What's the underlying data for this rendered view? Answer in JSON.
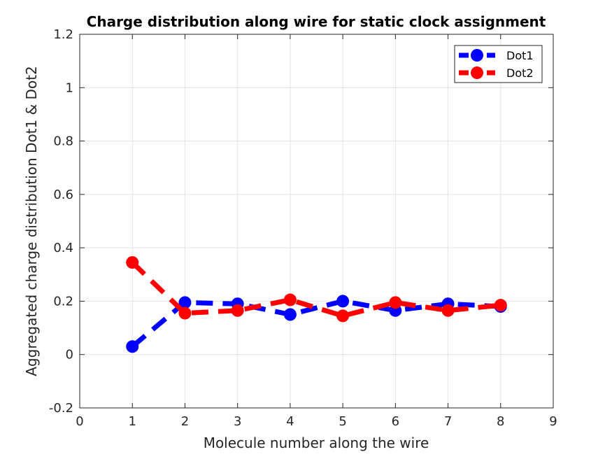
{
  "chart_data": {
    "type": "line",
    "title": "Charge distribution along wire for static clock assignment",
    "xlabel": "Molecule number along the wire",
    "ylabel": "Aggregated charge distribution Dot1 & Dot2",
    "xlim": [
      0,
      9
    ],
    "ylim": [
      -0.2,
      1.2
    ],
    "xticks": [
      0,
      1,
      2,
      3,
      4,
      5,
      6,
      7,
      8,
      9
    ],
    "xtick_labels": [
      "0",
      "1",
      "2",
      "3",
      "4",
      "5",
      "6",
      "7",
      "8",
      "9"
    ],
    "yticks": [
      -0.2,
      0,
      0.2,
      0.4,
      0.6,
      0.8,
      1,
      1.2
    ],
    "ytick_labels": [
      "-0.2",
      "0",
      "0.2",
      "0.4",
      "0.6",
      "0.8",
      "1",
      "1.2"
    ],
    "grid": true,
    "legend_position": "top-right",
    "x": [
      1,
      2,
      3,
      4,
      5,
      6,
      7,
      8
    ],
    "series": [
      {
        "name": "Dot1",
        "color": "#0000ff",
        "line_style": "dashed",
        "marker": "circle",
        "values": [
          0.03,
          0.195,
          0.19,
          0.15,
          0.2,
          0.165,
          0.19,
          0.18
        ]
      },
      {
        "name": "Dot2",
        "color": "#ff0000",
        "line_style": "dashed",
        "marker": "circle",
        "values": [
          0.345,
          0.155,
          0.165,
          0.205,
          0.145,
          0.195,
          0.165,
          0.185
        ]
      }
    ]
  }
}
